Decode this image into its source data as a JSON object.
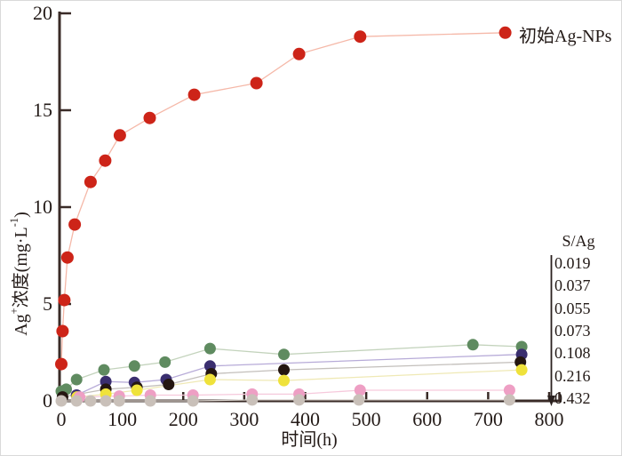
{
  "figure": {
    "legend_label": "初始Ag-NPs",
    "sag_header": "S/Ag",
    "xlabel": "时间(h)",
    "ylabel_parts": {
      "base": "Ag",
      "sup1": "+",
      "mid": "浓度(mg·L",
      "sup2": "-1",
      "close": ")"
    }
  },
  "style": {
    "background": "#ffffff",
    "axis_color": "#3a2b27",
    "text_color": "#231a17",
    "arrow_color": "#2a211f"
  },
  "chart_data": {
    "type": "scatter",
    "title": "",
    "xlabel": "时间(h)",
    "ylabel": "Ag+浓度(mg·L-1)",
    "xlim": [
      0,
      800
    ],
    "ylim": [
      0,
      20
    ],
    "x_ticks": [
      0,
      100,
      200,
      300,
      400,
      500,
      600,
      700,
      800
    ],
    "y_ticks": [
      0,
      5,
      10,
      15,
      20
    ],
    "grid": false,
    "legend_position": "top-right",
    "annotation": {
      "header": "S/Ag",
      "arrow_direction": "down",
      "ratios": [
        "0.019",
        "0.037",
        "0.055",
        "0.073",
        "0.108",
        "0.216",
        "0.432"
      ]
    },
    "series": [
      {
        "name": "初始Ag-NPs",
        "slug": "initial-ag-nps",
        "dot_color": "#cd2418",
        "line_color": "#f5b8a8",
        "radius": 7,
        "points": [
          [
            0,
            1.9
          ],
          [
            2,
            3.6
          ],
          [
            5,
            5.2
          ],
          [
            10,
            7.4
          ],
          [
            22,
            9.1
          ],
          [
            48,
            11.3
          ],
          [
            72,
            12.4
          ],
          [
            96,
            13.7
          ],
          [
            145,
            14.6
          ],
          [
            218,
            15.8
          ],
          [
            320,
            16.4
          ],
          [
            390,
            17.9
          ],
          [
            490,
            18.8
          ],
          [
            728,
            19.0
          ]
        ]
      },
      {
        "name": "S/Ag 0.019",
        "slug": "sag-0019",
        "dot_color": "#5f8b60",
        "line_color": "#c3d3bc",
        "radius": 6.5,
        "points": [
          [
            0,
            0.5
          ],
          [
            8,
            0.6
          ],
          [
            25,
            1.1
          ],
          [
            70,
            1.6
          ],
          [
            120,
            1.8
          ],
          [
            170,
            2.0
          ],
          [
            244,
            2.7
          ],
          [
            365,
            2.4
          ],
          [
            675,
            2.9
          ],
          [
            755,
            2.8
          ]
        ]
      },
      {
        "name": "S/Ag 0.037",
        "slug": "sag-0037",
        "dot_color": "#3a2e6f",
        "line_color": "#b7abd8",
        "radius": 6.5,
        "points": [
          [
            25,
            0.3
          ],
          [
            73,
            1.0
          ],
          [
            120,
            0.95
          ],
          [
            172,
            1.1
          ],
          [
            244,
            1.8
          ],
          [
            755,
            2.4
          ]
        ]
      },
      {
        "name": "S/Ag 0.055",
        "slug": "sag-0055",
        "dot_color": "#241611",
        "line_color": "#c3bfbb",
        "radius": 6.5,
        "points": [
          [
            2,
            0.2
          ],
          [
            73,
            0.6
          ],
          [
            124,
            0.7
          ],
          [
            176,
            0.85
          ],
          [
            246,
            1.4
          ],
          [
            365,
            1.6
          ],
          [
            753,
            2.0
          ]
        ]
      },
      {
        "name": "S/Ag 0.073",
        "slug": "sag-0073",
        "dot_color": "#efe23b",
        "line_color": "#efe9b5",
        "radius": 6.5,
        "points": [
          [
            26,
            0.2
          ],
          [
            73,
            0.35
          ],
          [
            124,
            0.55
          ],
          [
            244,
            1.1
          ],
          [
            365,
            1.05
          ],
          [
            755,
            1.6
          ]
        ]
      },
      {
        "name": "S/Ag 0.216",
        "slug": "sag-0216",
        "dot_color": "#ee9fc4",
        "line_color": "#f6c9dc",
        "radius": 6.5,
        "points": [
          [
            30,
            0.2
          ],
          [
            95,
            0.25
          ],
          [
            146,
            0.3
          ],
          [
            216,
            0.3
          ],
          [
            313,
            0.35
          ],
          [
            390,
            0.35
          ],
          [
            490,
            0.55
          ],
          [
            735,
            0.55
          ]
        ]
      },
      {
        "name": "S/Ag 0.432",
        "slug": "sag-0432",
        "dot_color": "#c9c0b9",
        "line_color": "#d9d3cd",
        "radius": 6.5,
        "points": [
          [
            0,
            0
          ],
          [
            25,
            0
          ],
          [
            48,
            0
          ],
          [
            73,
            0
          ],
          [
            95,
            0
          ],
          [
            146,
            0
          ],
          [
            216,
            0
          ],
          [
            313,
            0.05
          ],
          [
            390,
            0.05
          ],
          [
            488,
            0.05
          ],
          [
            735,
            0.05
          ]
        ]
      }
    ]
  }
}
